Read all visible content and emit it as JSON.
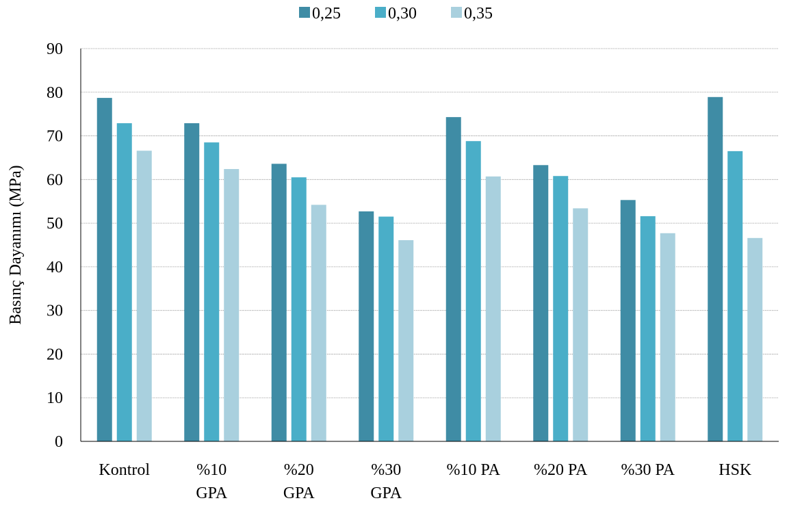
{
  "chart_data": {
    "type": "bar",
    "title": "",
    "xlabel": "",
    "ylabel": "Basınç Dayanımı (MPa)",
    "ylim": [
      0,
      90
    ],
    "yticks": [
      0,
      10,
      20,
      30,
      40,
      50,
      60,
      70,
      80,
      90
    ],
    "grid": true,
    "legend_position": "top",
    "categories": [
      [
        "Kontrol"
      ],
      [
        "%10",
        "GPA"
      ],
      [
        "%20",
        "GPA"
      ],
      [
        "%30",
        "GPA"
      ],
      [
        "%10 PA"
      ],
      [
        "%20 PA"
      ],
      [
        "%30 PA"
      ],
      [
        "HSK"
      ]
    ],
    "series": [
      {
        "name": "0,25",
        "color": "#3f8ca5",
        "values": [
          78.7,
          72.9,
          63.6,
          52.7,
          74.3,
          63.3,
          55.3,
          78.9
        ]
      },
      {
        "name": "0,30",
        "color": "#4aaec8",
        "values": [
          72.9,
          68.5,
          60.5,
          51.5,
          68.8,
          60.8,
          51.6,
          66.5
        ]
      },
      {
        "name": "0,35",
        "color": "#a9d0de",
        "values": [
          66.6,
          62.4,
          54.2,
          46.1,
          60.7,
          53.4,
          47.7,
          46.6
        ]
      }
    ]
  }
}
